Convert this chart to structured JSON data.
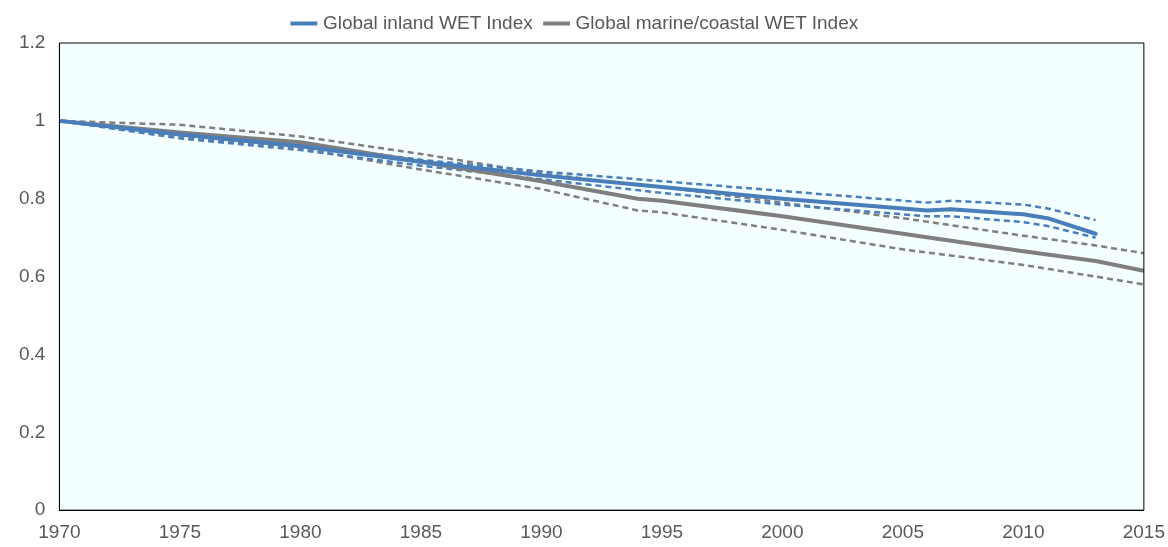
{
  "chart_data": {
    "type": "line",
    "xlim": [
      1970,
      2015
    ],
    "xticks": [
      1970,
      1975,
      1980,
      1985,
      1990,
      1995,
      2000,
      2005,
      2010,
      2015
    ],
    "ylim": [
      0,
      1.2
    ],
    "yticks": [
      0,
      0.2,
      0.4,
      0.6,
      0.8,
      1,
      1.2
    ],
    "grid": false,
    "legend": "top",
    "marker": "none",
    "line_style": "solid",
    "series": [
      {
        "name": "Global inland WET Index",
        "color": "#4a7ebb",
        "x": [
          1970,
          1975,
          1980,
          1985,
          1990,
          1995,
          2000,
          2005,
          2006,
          2007,
          2010,
          2011,
          2013
        ],
        "values": [
          1.0,
          0.965,
          0.935,
          0.895,
          0.86,
          0.83,
          0.8,
          0.775,
          0.77,
          0.773,
          0.76,
          0.75,
          0.71
        ]
      },
      {
        "name": "Global marine/coastal WET Index",
        "color": "#7f7f7f",
        "x": [
          1970,
          1975,
          1980,
          1985,
          1990,
          1994,
          1995,
          2000,
          2005,
          2010,
          2013,
          2015
        ],
        "values": [
          1.0,
          0.97,
          0.945,
          0.895,
          0.845,
          0.8,
          0.795,
          0.755,
          0.71,
          0.665,
          0.64,
          0.615
        ]
      },
      {
        "color": "#4a7ebb",
        "line_style": "dashed",
        "x": [
          1970,
          1975,
          1980,
          1985,
          1990,
          1995,
          2000,
          2005,
          2006,
          2007,
          2010,
          2011,
          2013
        ],
        "values": [
          1.0,
          0.97,
          0.94,
          0.9,
          0.87,
          0.845,
          0.82,
          0.795,
          0.79,
          0.795,
          0.785,
          0.775,
          0.745
        ]
      },
      {
        "color": "#4a7ebb",
        "line_style": "dashed",
        "x": [
          1970,
          1975,
          1980,
          1985,
          1990,
          1995,
          2000,
          2005,
          2006,
          2007,
          2010,
          2011,
          2013
        ],
        "values": [
          1.0,
          0.955,
          0.925,
          0.885,
          0.85,
          0.815,
          0.785,
          0.76,
          0.755,
          0.755,
          0.74,
          0.73,
          0.7
        ]
      },
      {
        "color": "#7f7f7f",
        "line_style": "dashed",
        "x": [
          1970,
          1975,
          1980,
          1985,
          1990,
          1994,
          1995,
          2000,
          2005,
          2010,
          2013,
          2015
        ],
        "values": [
          1.0,
          0.99,
          0.96,
          0.915,
          0.865,
          0.835,
          0.83,
          0.79,
          0.75,
          0.705,
          0.68,
          0.66
        ]
      },
      {
        "color": "#7f7f7f",
        "line_style": "dashed",
        "x": [
          1970,
          1975,
          1980,
          1985,
          1990,
          1994,
          1995,
          2000,
          2005,
          2010,
          2013,
          2015
        ],
        "values": [
          1.0,
          0.96,
          0.93,
          0.875,
          0.825,
          0.77,
          0.765,
          0.72,
          0.67,
          0.63,
          0.6,
          0.58
        ]
      }
    ]
  }
}
